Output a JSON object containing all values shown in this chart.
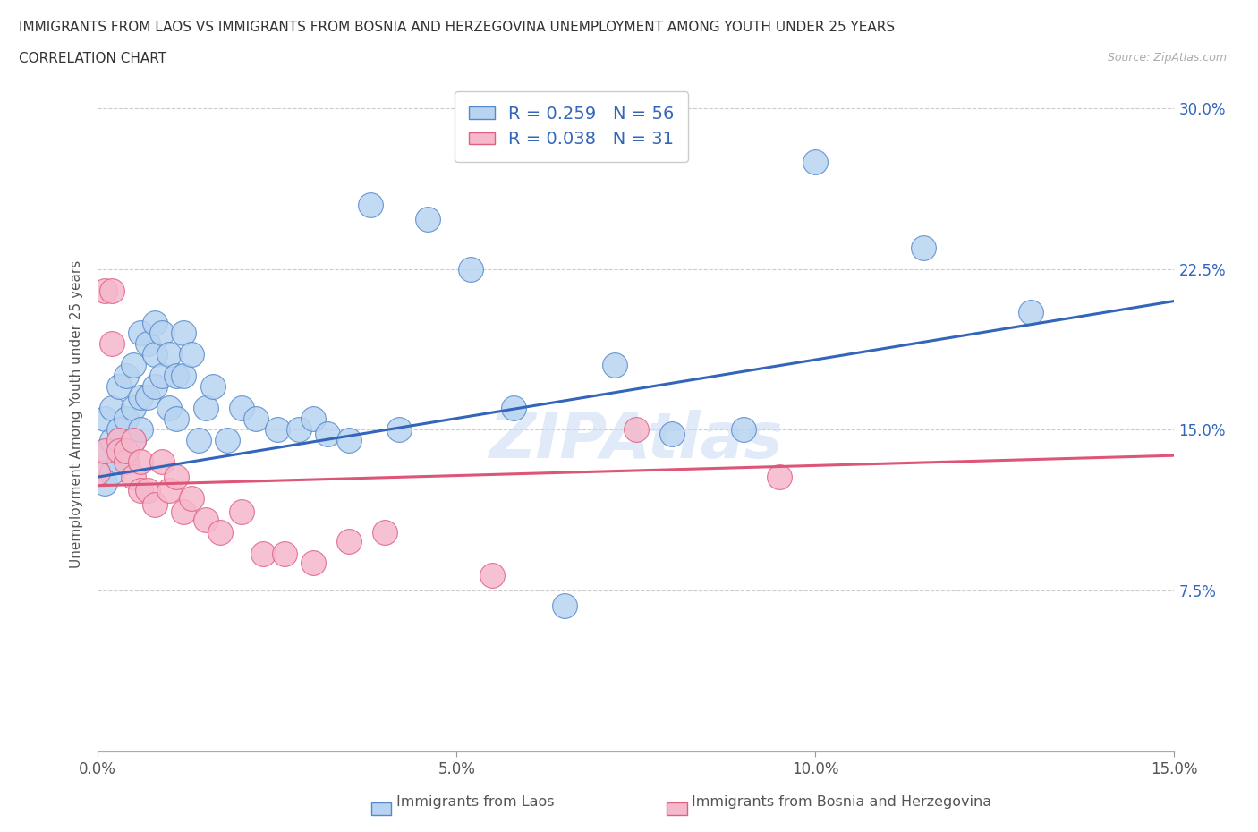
{
  "title_line1": "IMMIGRANTS FROM LAOS VS IMMIGRANTS FROM BOSNIA AND HERZEGOVINA UNEMPLOYMENT AMONG YOUTH UNDER 25 YEARS",
  "title_line2": "CORRELATION CHART",
  "source_text": "Source: ZipAtlas.com",
  "ylabel": "Unemployment Among Youth under 25 years",
  "xlim": [
    0.0,
    0.15
  ],
  "ylim": [
    0.0,
    0.315
  ],
  "xticks": [
    0.0,
    0.05,
    0.1,
    0.15
  ],
  "xtick_labels": [
    "0.0%",
    "5.0%",
    "10.0%",
    "15.0%"
  ],
  "yticks_right": [
    0.075,
    0.15,
    0.225,
    0.3
  ],
  "ytick_labels_right": [
    "7.5%",
    "15.0%",
    "22.5%",
    "30.0%"
  ],
  "color_laos": "#b8d4f0",
  "color_laos_edge": "#5588cc",
  "color_laos_line": "#3366bb",
  "color_bosnia": "#f5b8cc",
  "color_bosnia_edge": "#e06080",
  "color_bosnia_line": "#dd5577",
  "R_laos": 0.259,
  "N_laos": 56,
  "R_bosnia": 0.038,
  "N_bosnia": 31,
  "watermark": "ZIPAtlas",
  "legend_label_laos": "Immigrants from Laos",
  "legend_label_bosnia": "Immigrants from Bosnia and Herzegovina",
  "laos_x": [
    0.0,
    0.001,
    0.001,
    0.001,
    0.002,
    0.002,
    0.002,
    0.003,
    0.003,
    0.003,
    0.004,
    0.004,
    0.004,
    0.005,
    0.005,
    0.005,
    0.006,
    0.006,
    0.006,
    0.007,
    0.007,
    0.008,
    0.008,
    0.008,
    0.009,
    0.009,
    0.01,
    0.01,
    0.011,
    0.011,
    0.012,
    0.012,
    0.013,
    0.014,
    0.015,
    0.016,
    0.018,
    0.02,
    0.022,
    0.025,
    0.028,
    0.03,
    0.032,
    0.035,
    0.038,
    0.042,
    0.046,
    0.052,
    0.058,
    0.065,
    0.072,
    0.08,
    0.09,
    0.1,
    0.115,
    0.13
  ],
  "laos_y": [
    0.13,
    0.125,
    0.14,
    0.155,
    0.13,
    0.145,
    0.16,
    0.135,
    0.15,
    0.17,
    0.14,
    0.155,
    0.175,
    0.145,
    0.16,
    0.18,
    0.15,
    0.165,
    0.195,
    0.165,
    0.19,
    0.17,
    0.185,
    0.2,
    0.175,
    0.195,
    0.16,
    0.185,
    0.155,
    0.175,
    0.175,
    0.195,
    0.185,
    0.145,
    0.16,
    0.17,
    0.145,
    0.16,
    0.155,
    0.15,
    0.15,
    0.155,
    0.148,
    0.145,
    0.255,
    0.15,
    0.248,
    0.225,
    0.16,
    0.068,
    0.18,
    0.148,
    0.15,
    0.275,
    0.235,
    0.205
  ],
  "bosnia_x": [
    0.0,
    0.001,
    0.001,
    0.002,
    0.002,
    0.003,
    0.003,
    0.004,
    0.004,
    0.005,
    0.005,
    0.006,
    0.006,
    0.007,
    0.008,
    0.009,
    0.01,
    0.011,
    0.012,
    0.013,
    0.015,
    0.017,
    0.02,
    0.023,
    0.026,
    0.03,
    0.035,
    0.04,
    0.055,
    0.075,
    0.095
  ],
  "bosnia_y": [
    0.13,
    0.14,
    0.215,
    0.19,
    0.215,
    0.145,
    0.14,
    0.135,
    0.14,
    0.128,
    0.145,
    0.122,
    0.135,
    0.122,
    0.115,
    0.135,
    0.122,
    0.128,
    0.112,
    0.118,
    0.108,
    0.102,
    0.112,
    0.092,
    0.092,
    0.088,
    0.098,
    0.102,
    0.082,
    0.15,
    0.128
  ],
  "trend_laos_x0": 0.0,
  "trend_laos_y0": 0.128,
  "trend_laos_x1": 0.15,
  "trend_laos_y1": 0.21,
  "trend_bosnia_x0": 0.0,
  "trend_bosnia_y0": 0.124,
  "trend_bosnia_x1": 0.15,
  "trend_bosnia_y1": 0.138
}
